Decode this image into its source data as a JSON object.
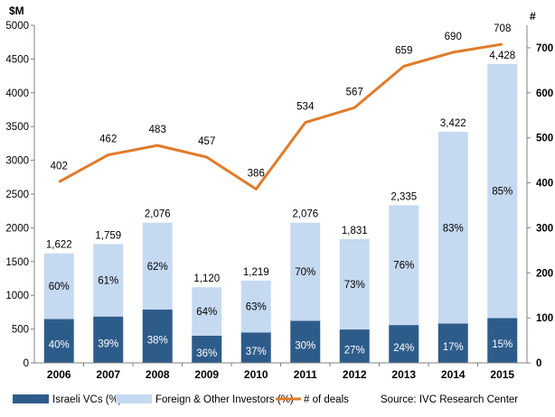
{
  "chart_data": {
    "type": "bar",
    "stacked": true,
    "categories": [
      "2006",
      "2007",
      "2008",
      "2009",
      "2010",
      "2011",
      "2012",
      "2013",
      "2014",
      "2015"
    ],
    "series": [
      {
        "name": "Israeli VCs (%)",
        "color": "#2e5c8a",
        "percent_labels": [
          "40%",
          "39%",
          "38%",
          "36%",
          "37%",
          "30%",
          "27%",
          "24%",
          "17%",
          "15%"
        ],
        "values": [
          649,
          686,
          789,
          403,
          451,
          623,
          494,
          560,
          582,
          664
        ]
      },
      {
        "name": "Foreign & Other Investors (%)",
        "color": "#c5d9f1",
        "percent_labels": [
          "60%",
          "61%",
          "62%",
          "64%",
          "63%",
          "70%",
          "73%",
          "76%",
          "83%",
          "85%"
        ],
        "values": [
          973,
          1073,
          1287,
          717,
          768,
          1453,
          1337,
          1775,
          2840,
          3764
        ]
      }
    ],
    "totals": [
      1622,
      1759,
      2076,
      1120,
      1219,
      2076,
      1831,
      2335,
      3422,
      4428
    ],
    "total_labels": [
      "1,622",
      "1,759",
      "2,076",
      "1,120",
      "1,219",
      "2,076",
      "1,831",
      "2,335",
      "3,422",
      "4,428"
    ],
    "line_series": {
      "name": "# of deals",
      "color": "#e07b2a",
      "values": [
        402,
        462,
        483,
        457,
        386,
        534,
        567,
        659,
        690,
        708
      ],
      "axis": "right"
    },
    "ylabel": "$M",
    "y2label": "#",
    "ylim": [
      0,
      5000
    ],
    "y2lim": [
      0,
      750
    ],
    "yticks": [
      0,
      500,
      1000,
      1500,
      2000,
      2500,
      3000,
      3500,
      4000,
      4500,
      5000
    ],
    "y2ticks": [
      0,
      100,
      200,
      300,
      400,
      500,
      600,
      700
    ],
    "grid": false,
    "legend_position": "bottom",
    "source": "Source: IVC Research Center"
  }
}
